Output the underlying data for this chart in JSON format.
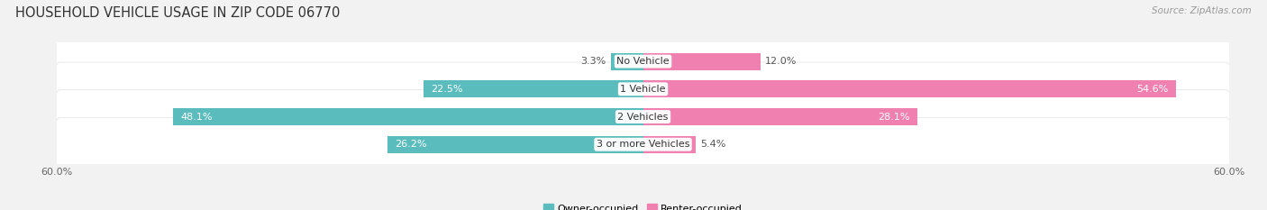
{
  "title": "HOUSEHOLD VEHICLE USAGE IN ZIP CODE 06770",
  "source_text": "Source: ZipAtlas.com",
  "categories": [
    "No Vehicle",
    "1 Vehicle",
    "2 Vehicles",
    "3 or more Vehicles"
  ],
  "owner_values": [
    3.3,
    22.5,
    48.1,
    26.2
  ],
  "renter_values": [
    12.0,
    54.6,
    28.1,
    5.4
  ],
  "owner_color": "#5bbcbe",
  "renter_color": "#f080b0",
  "owner_color_light": "#a8dde0",
  "renter_color_light": "#f8b8d0",
  "owner_label": "Owner-occupied",
  "renter_label": "Renter-occupied",
  "xlim_min": -60,
  "xlim_max": 60,
  "background_color": "#f2f2f2",
  "bar_bg_color": "#ffffff",
  "bar_bg_edge_color": "#e0e0e0",
  "title_fontsize": 10.5,
  "source_fontsize": 7.5,
  "bar_height": 0.62,
  "label_color_inside": "#ffffff",
  "label_color_outside": "#555555",
  "label_fontsize": 8.0,
  "category_fontsize": 8.0,
  "axis_fontsize": 8.0
}
